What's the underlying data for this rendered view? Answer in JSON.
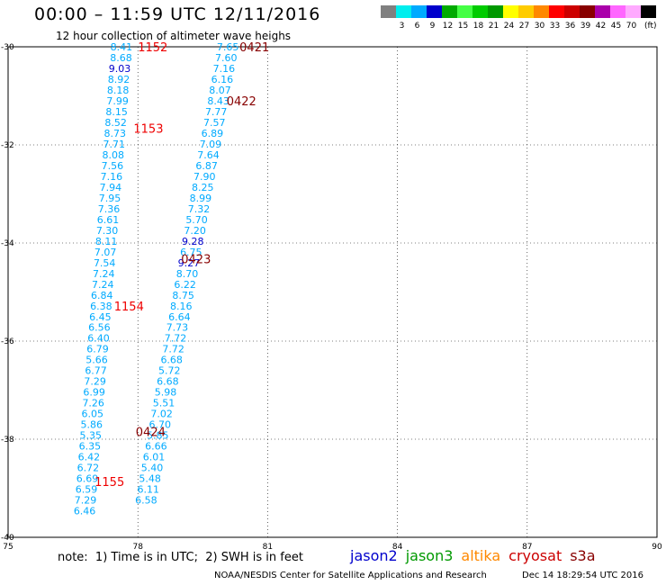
{
  "title": "00:00 – 11:59 UTC 12/11/2016",
  "subtitle": "12 hour collection of altimeter wave heighs",
  "legend": {
    "swatches": [
      {
        "color": "#808080",
        "label": ""
      },
      {
        "color": "#00eeee",
        "label": "3"
      },
      {
        "color": "#00aaff",
        "label": "6"
      },
      {
        "color": "#0000cc",
        "label": "9"
      },
      {
        "color": "#00aa00",
        "label": "12"
      },
      {
        "color": "#44ff44",
        "label": "15"
      },
      {
        "color": "#00cc00",
        "label": "18"
      },
      {
        "color": "#009900",
        "label": "21"
      },
      {
        "color": "#ffff00",
        "label": "24"
      },
      {
        "color": "#ffcc00",
        "label": "27"
      },
      {
        "color": "#ff8800",
        "label": "30"
      },
      {
        "color": "#ff0000",
        "label": "33"
      },
      {
        "color": "#cc0000",
        "label": "36"
      },
      {
        "color": "#880000",
        "label": "39"
      },
      {
        "color": "#aa00aa",
        "label": "42"
      },
      {
        "color": "#ff66ff",
        "label": "45"
      },
      {
        "color": "#ffaaff",
        "label": "70"
      },
      {
        "color": "#000000",
        "label": ""
      }
    ],
    "unit": "(ft)"
  },
  "note": "note:  1) Time is in UTC;  2) SWH is in feet",
  "satellites": [
    {
      "name": "jason2",
      "color": "#0000cc"
    },
    {
      "name": "jason3",
      "color": "#009900"
    },
    {
      "name": "altika",
      "color": "#ff8800"
    },
    {
      "name": "cryosat",
      "color": "#cc0000"
    },
    {
      "name": "s3a",
      "color": "#880000"
    }
  ],
  "footer_left": "NOAA/NESDIS Center for Satellite Applications and Research",
  "footer_right": "Dec 14 18:29:54 UTC 2016",
  "chart_data": {
    "type": "scatter",
    "xlim": [
      75,
      90
    ],
    "ylim": [
      -40,
      -30
    ],
    "x_ticks": [
      "75",
      "78",
      "81",
      "84",
      "87",
      "90"
    ],
    "y_ticks": [
      "-30",
      "-32",
      "-34",
      "-36",
      "-38",
      "-40"
    ],
    "grid": true,
    "points": [
      {
        "x": 77.62,
        "y": -30.0,
        "label": "8.41",
        "color": "#00aaff"
      },
      {
        "x": 77.61,
        "y": -30.22,
        "label": "8.68",
        "color": "#00aaff"
      },
      {
        "x": 77.58,
        "y": -30.44,
        "label": "9.03",
        "color": "#0000cc"
      },
      {
        "x": 77.56,
        "y": -30.66,
        "label": "8.92",
        "color": "#00aaff"
      },
      {
        "x": 77.54,
        "y": -30.88,
        "label": "8.18",
        "color": "#00aaff"
      },
      {
        "x": 77.53,
        "y": -31.1,
        "label": "7.99",
        "color": "#00aaff"
      },
      {
        "x": 77.51,
        "y": -31.32,
        "label": "8.15",
        "color": "#00aaff"
      },
      {
        "x": 77.49,
        "y": -31.54,
        "label": "8.52",
        "color": "#00aaff"
      },
      {
        "x": 77.47,
        "y": -31.76,
        "label": "8.73",
        "color": "#00aaff"
      },
      {
        "x": 77.45,
        "y": -31.98,
        "label": "7.71",
        "color": "#00aaff"
      },
      {
        "x": 77.43,
        "y": -32.2,
        "label": "8.08",
        "color": "#00aaff"
      },
      {
        "x": 77.41,
        "y": -32.42,
        "label": "7.56",
        "color": "#00aaff"
      },
      {
        "x": 77.39,
        "y": -32.64,
        "label": "7.16",
        "color": "#00aaff"
      },
      {
        "x": 77.37,
        "y": -32.86,
        "label": "7.94",
        "color": "#00aaff"
      },
      {
        "x": 77.35,
        "y": -33.08,
        "label": "7.95",
        "color": "#00aaff"
      },
      {
        "x": 77.33,
        "y": -33.3,
        "label": "7.36",
        "color": "#00aaff"
      },
      {
        "x": 77.31,
        "y": -33.52,
        "label": "6.61",
        "color": "#00aaff"
      },
      {
        "x": 77.29,
        "y": -33.74,
        "label": "7.30",
        "color": "#00aaff"
      },
      {
        "x": 77.27,
        "y": -33.96,
        "label": "8.11",
        "color": "#00aaff"
      },
      {
        "x": 77.25,
        "y": -34.18,
        "label": "7.07",
        "color": "#00aaff"
      },
      {
        "x": 77.23,
        "y": -34.4,
        "label": "7.54",
        "color": "#00aaff"
      },
      {
        "x": 77.21,
        "y": -34.62,
        "label": "7.24",
        "color": "#00aaff"
      },
      {
        "x": 77.19,
        "y": -34.84,
        "label": "7.24",
        "color": "#00aaff"
      },
      {
        "x": 77.17,
        "y": -35.06,
        "label": "6.84",
        "color": "#00aaff"
      },
      {
        "x": 77.15,
        "y": -35.28,
        "label": "6.38",
        "color": "#00aaff"
      },
      {
        "x": 77.13,
        "y": -35.5,
        "label": "6.45",
        "color": "#00aaff"
      },
      {
        "x": 77.11,
        "y": -35.72,
        "label": "6.56",
        "color": "#00aaff"
      },
      {
        "x": 77.09,
        "y": -35.94,
        "label": "6.40",
        "color": "#00aaff"
      },
      {
        "x": 77.07,
        "y": -36.16,
        "label": "6.79",
        "color": "#00aaff"
      },
      {
        "x": 77.05,
        "y": -36.38,
        "label": "5.66",
        "color": "#00aaff"
      },
      {
        "x": 77.03,
        "y": -36.6,
        "label": "6.77",
        "color": "#00aaff"
      },
      {
        "x": 77.01,
        "y": -36.82,
        "label": "7.29",
        "color": "#00aaff"
      },
      {
        "x": 76.99,
        "y": -37.04,
        "label": "6.99",
        "color": "#00aaff"
      },
      {
        "x": 76.97,
        "y": -37.26,
        "label": "7.26",
        "color": "#00aaff"
      },
      {
        "x": 76.95,
        "y": -37.48,
        "label": "6.05",
        "color": "#00aaff"
      },
      {
        "x": 76.93,
        "y": -37.7,
        "label": "5.86",
        "color": "#00aaff"
      },
      {
        "x": 76.91,
        "y": -37.92,
        "label": "5.35",
        "color": "#00aaff"
      },
      {
        "x": 76.89,
        "y": -38.14,
        "label": "6.35",
        "color": "#00aaff"
      },
      {
        "x": 76.87,
        "y": -38.36,
        "label": "6.42",
        "color": "#00aaff"
      },
      {
        "x": 76.85,
        "y": -38.58,
        "label": "6.72",
        "color": "#00aaff"
      },
      {
        "x": 76.83,
        "y": -38.8,
        "label": "6.69",
        "color": "#00aaff"
      },
      {
        "x": 76.81,
        "y": -39.02,
        "label": "6.59",
        "color": "#00aaff"
      },
      {
        "x": 76.79,
        "y": -39.24,
        "label": "7.29",
        "color": "#00aaff"
      },
      {
        "x": 76.77,
        "y": -39.46,
        "label": "6.46",
        "color": "#00aaff"
      },
      {
        "x": 80.08,
        "y": -30.0,
        "label": "7.65",
        "color": "#00aaff"
      },
      {
        "x": 80.04,
        "y": -30.22,
        "label": "7.60",
        "color": "#00aaff"
      },
      {
        "x": 79.99,
        "y": -30.44,
        "label": "7.16",
        "color": "#00aaff"
      },
      {
        "x": 79.95,
        "y": -30.66,
        "label": "6.16",
        "color": "#00aaff"
      },
      {
        "x": 79.9,
        "y": -30.88,
        "label": "8.07",
        "color": "#00aaff"
      },
      {
        "x": 79.86,
        "y": -31.1,
        "label": "8.43",
        "color": "#00aaff"
      },
      {
        "x": 79.81,
        "y": -31.32,
        "label": "7.77",
        "color": "#00aaff"
      },
      {
        "x": 79.77,
        "y": -31.54,
        "label": "7.57",
        "color": "#00aaff"
      },
      {
        "x": 79.72,
        "y": -31.76,
        "label": "6.89",
        "color": "#00aaff"
      },
      {
        "x": 79.68,
        "y": -31.98,
        "label": "7.09",
        "color": "#00aaff"
      },
      {
        "x": 79.63,
        "y": -32.2,
        "label": "7.64",
        "color": "#00aaff"
      },
      {
        "x": 79.59,
        "y": -32.42,
        "label": "6.87",
        "color": "#00aaff"
      },
      {
        "x": 79.54,
        "y": -32.64,
        "label": "7.90",
        "color": "#00aaff"
      },
      {
        "x": 79.5,
        "y": -32.86,
        "label": "8.25",
        "color": "#00aaff"
      },
      {
        "x": 79.45,
        "y": -33.08,
        "label": "8.99",
        "color": "#00aaff"
      },
      {
        "x": 79.41,
        "y": -33.3,
        "label": "7.32",
        "color": "#00aaff"
      },
      {
        "x": 79.36,
        "y": -33.52,
        "label": "5.70",
        "color": "#00aaff"
      },
      {
        "x": 79.32,
        "y": -33.74,
        "label": "7.20",
        "color": "#00aaff"
      },
      {
        "x": 79.27,
        "y": -33.96,
        "label": "9.28",
        "color": "#0000cc"
      },
      {
        "x": 79.23,
        "y": -34.18,
        "label": "6.75",
        "color": "#00aaff"
      },
      {
        "x": 79.18,
        "y": -34.4,
        "label": "9.27",
        "color": "#0000cc"
      },
      {
        "x": 79.14,
        "y": -34.62,
        "label": "8.70",
        "color": "#00aaff"
      },
      {
        "x": 79.09,
        "y": -34.84,
        "label": "6.22",
        "color": "#00aaff"
      },
      {
        "x": 79.05,
        "y": -35.06,
        "label": "8.75",
        "color": "#00aaff"
      },
      {
        "x": 79.0,
        "y": -35.28,
        "label": "8.16",
        "color": "#00aaff"
      },
      {
        "x": 78.96,
        "y": -35.5,
        "label": "6.64",
        "color": "#00aaff"
      },
      {
        "x": 78.91,
        "y": -35.72,
        "label": "7.73",
        "color": "#00aaff"
      },
      {
        "x": 78.87,
        "y": -35.94,
        "label": "7.72",
        "color": "#00aaff"
      },
      {
        "x": 78.82,
        "y": -36.16,
        "label": "7.72",
        "color": "#00aaff"
      },
      {
        "x": 78.78,
        "y": -36.38,
        "label": "6.68",
        "color": "#00aaff"
      },
      {
        "x": 78.73,
        "y": -36.6,
        "label": "5.72",
        "color": "#00aaff"
      },
      {
        "x": 78.69,
        "y": -36.82,
        "label": "6.68",
        "color": "#00aaff"
      },
      {
        "x": 78.64,
        "y": -37.04,
        "label": "5.98",
        "color": "#00aaff"
      },
      {
        "x": 78.6,
        "y": -37.26,
        "label": "5.51",
        "color": "#00aaff"
      },
      {
        "x": 78.55,
        "y": -37.48,
        "label": "7.02",
        "color": "#00aaff"
      },
      {
        "x": 78.51,
        "y": -37.7,
        "label": "6.70",
        "color": "#00aaff"
      },
      {
        "x": 78.46,
        "y": -37.92,
        "label": "5.85",
        "color": "#00aaff"
      },
      {
        "x": 78.42,
        "y": -38.14,
        "label": "6.66",
        "color": "#00aaff"
      },
      {
        "x": 78.37,
        "y": -38.36,
        "label": "6.01",
        "color": "#00aaff"
      },
      {
        "x": 78.33,
        "y": -38.58,
        "label": "5.40",
        "color": "#00aaff"
      },
      {
        "x": 78.28,
        "y": -38.8,
        "label": "5.48",
        "color": "#00aaff"
      },
      {
        "x": 78.24,
        "y": -39.02,
        "label": "6.11",
        "color": "#00aaff"
      },
      {
        "x": 78.19,
        "y": -39.24,
        "label": "6.58",
        "color": "#00aaff"
      }
    ],
    "time_labels": [
      {
        "x": 78.0,
        "y": -30.0,
        "label": "1152",
        "color": "#ee0000"
      },
      {
        "x": 77.9,
        "y": -31.66,
        "label": "1153",
        "color": "#ee0000"
      },
      {
        "x": 77.45,
        "y": -35.28,
        "label": "1154",
        "color": "#ee0000"
      },
      {
        "x": 77.0,
        "y": -38.86,
        "label": "1155",
        "color": "#ee0000"
      },
      {
        "x": 80.35,
        "y": -30.0,
        "label": "0421",
        "color": "#880000"
      },
      {
        "x": 80.05,
        "y": -31.1,
        "label": "0422",
        "color": "#880000"
      },
      {
        "x": 79.0,
        "y": -34.32,
        "label": "0423",
        "color": "#880000"
      },
      {
        "x": 77.95,
        "y": -37.84,
        "label": "0424",
        "color": "#880000"
      }
    ]
  }
}
